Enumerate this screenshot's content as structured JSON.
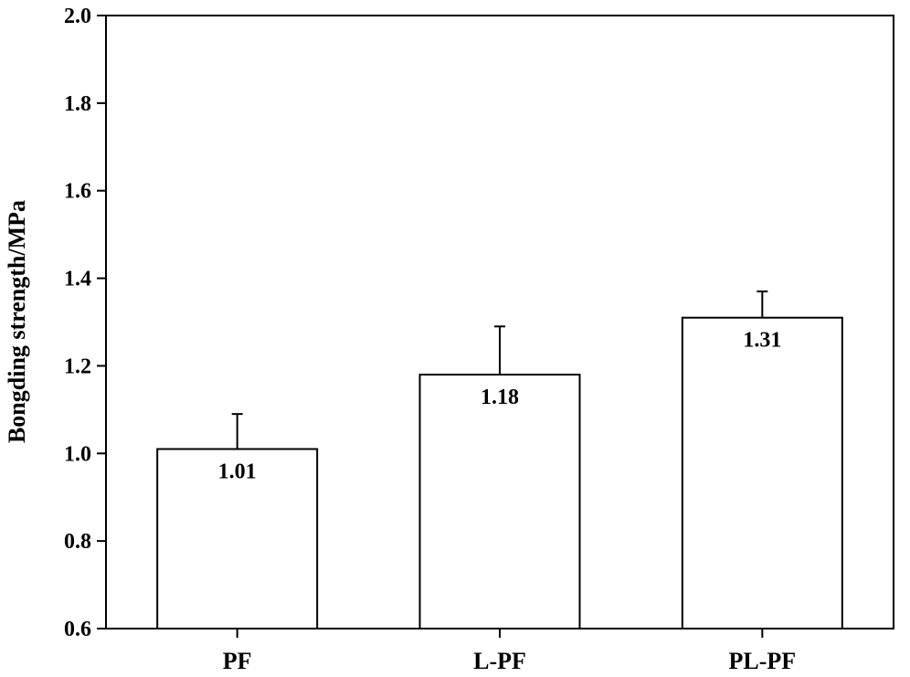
{
  "chart_data": {
    "type": "bar",
    "title": "",
    "xlabel": "",
    "ylabel": "Bongding strength/MPa",
    "ylim": [
      0.6,
      2.0
    ],
    "yticks": [
      0.6,
      0.8,
      1.0,
      1.2,
      1.4,
      1.6,
      1.8,
      2.0
    ],
    "ytick_labels": [
      "0.6",
      "0.8",
      "1.0",
      "1.2",
      "1.4",
      "1.6",
      "1.8",
      "2.0"
    ],
    "categories": [
      "PF",
      "L-PF",
      "PL-PF"
    ],
    "values": [
      1.01,
      1.18,
      1.31
    ],
    "value_labels": [
      "1.01",
      "1.18",
      "1.31"
    ],
    "error_upper": [
      0.08,
      0.11,
      0.06
    ],
    "grid": false,
    "legend": "none",
    "colors": {
      "bar_fill": "#ffffff",
      "stroke": "#000000"
    }
  }
}
